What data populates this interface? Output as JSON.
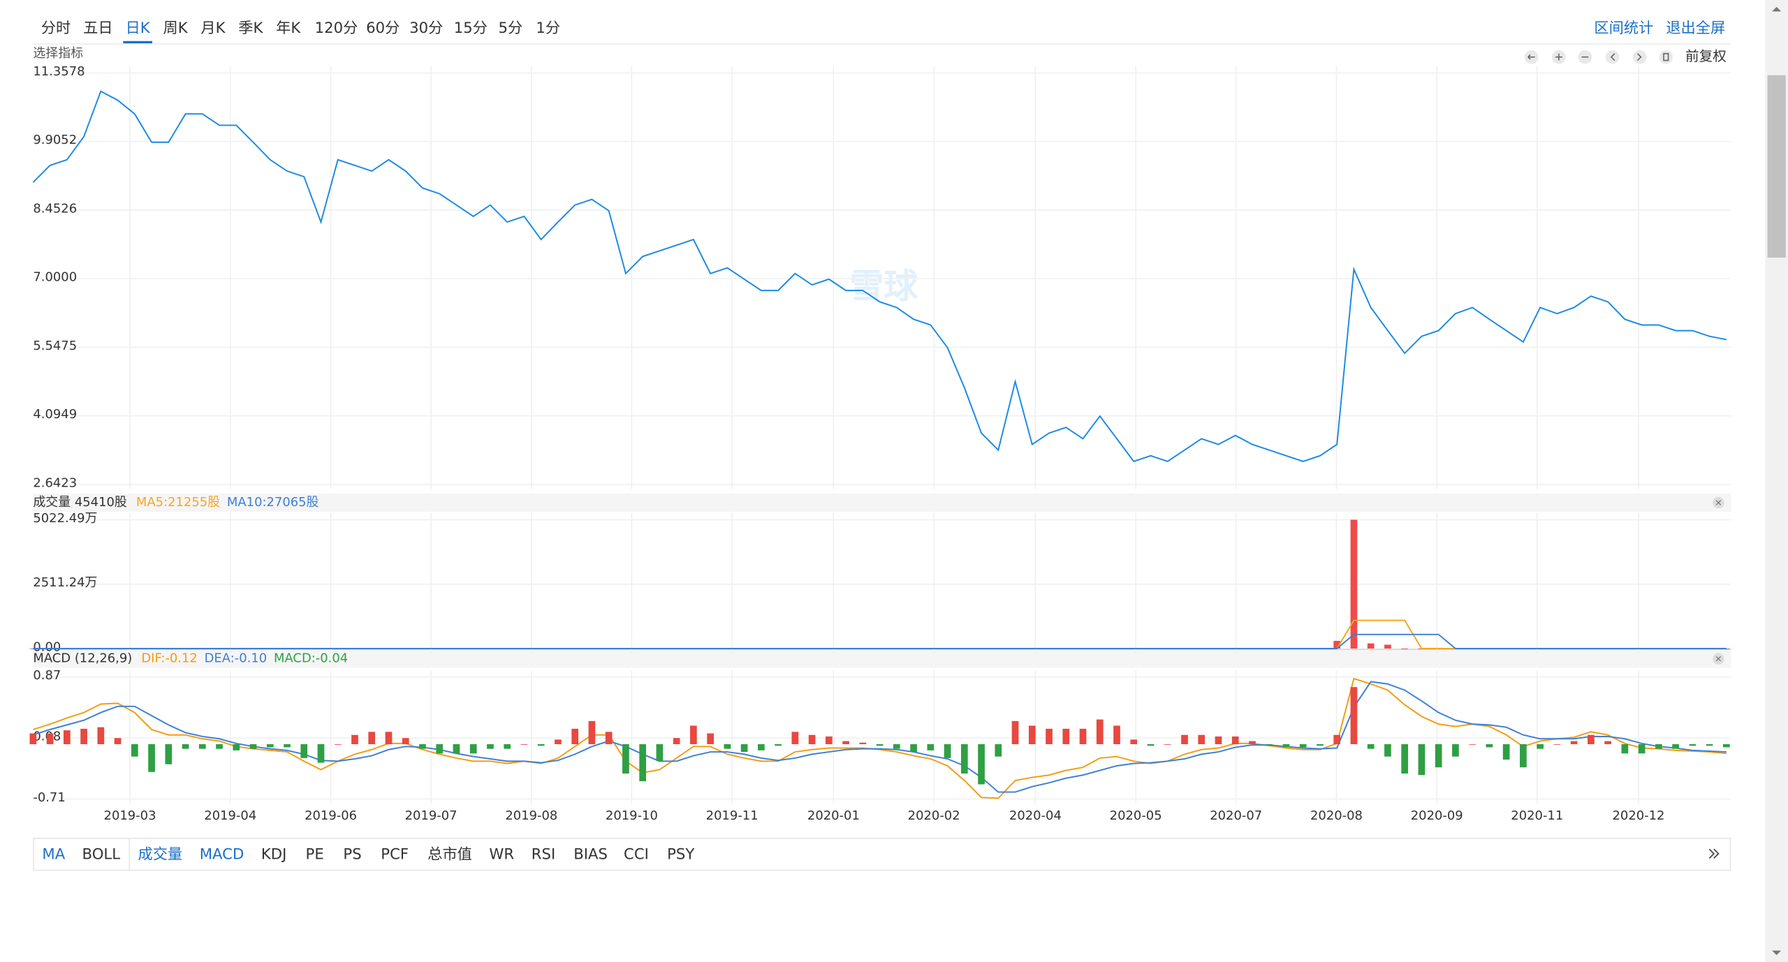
{
  "toolbar": {
    "periods": [
      "分时",
      "五日",
      "日K",
      "周K",
      "月K",
      "季K",
      "年K",
      "120分",
      "60分",
      "30分",
      "15分",
      "5分",
      "1分"
    ],
    "active_period": 2,
    "actions": [
      "区间统计",
      "退出全屏"
    ]
  },
  "indicator_select": "选择指标",
  "adjust": "前复权",
  "watermark": "雪球",
  "chart_data": [
    {
      "type": "line",
      "color": "#1a8ae5",
      "grid": true,
      "values": [
        9.04,
        9.4,
        9.52,
        10.01,
        10.97,
        10.78,
        10.49,
        9.89,
        9.89,
        10.49,
        10.49,
        10.25,
        10.25,
        9.89,
        9.52,
        9.28,
        9.16,
        8.2,
        9.52,
        9.4,
        9.28,
        9.52,
        9.28,
        8.92,
        8.8,
        8.56,
        8.32,
        8.56,
        8.2,
        8.32,
        7.83,
        8.2,
        8.56,
        8.68,
        8.44,
        7.11,
        7.47,
        7.59,
        7.71,
        7.83,
        7.11,
        7.23,
        6.99,
        6.75,
        6.75,
        7.11,
        6.87,
        6.99,
        6.75,
        6.75,
        6.51,
        6.39,
        6.14,
        6.02,
        5.54,
        4.69,
        3.73,
        3.37,
        4.82,
        3.49,
        3.73,
        3.85,
        3.61,
        4.09,
        3.61,
        3.13,
        3.25,
        3.13,
        3.37,
        3.61,
        3.49,
        3.68,
        3.49,
        3.37,
        3.25,
        3.13,
        3.25,
        3.49,
        7.2,
        6.39,
        5.9,
        5.42,
        5.78,
        5.9,
        6.26,
        6.39,
        6.14,
        5.9,
        5.66,
        6.39,
        6.26,
        6.39,
        6.63,
        6.51,
        6.14,
        6.02,
        6.02,
        5.9,
        5.9,
        5.78,
        5.71
      ],
      "xlim": [
        0,
        100
      ],
      "ylim": [
        2.6423,
        11.3578
      ],
      "yticks": [
        11.3578,
        9.9052,
        8.4526,
        {
          "value": 7,
          "label": "7.0000"
        },
        5.5475,
        4.0949,
        2.6423
      ]
    },
    {
      "type": "bar",
      "title": "成交量 45410股",
      "color": "#f04a4a",
      "grid": true,
      "values": [
        0,
        0,
        0,
        0,
        0,
        0,
        0,
        0,
        0,
        0,
        0,
        0,
        0,
        0,
        0,
        0,
        0,
        0,
        0,
        0,
        0,
        0,
        0,
        0,
        0,
        0,
        0,
        0,
        0,
        0,
        0,
        0,
        0,
        0,
        0,
        0,
        0,
        0,
        0,
        0,
        0,
        0,
        0,
        0,
        0,
        0,
        0,
        0,
        0,
        0,
        0,
        0,
        0,
        0,
        0,
        0,
        0,
        0,
        0,
        0,
        0,
        0,
        0,
        0,
        0,
        0,
        0,
        0,
        0,
        0,
        0,
        0,
        0,
        0,
        0,
        0,
        0,
        300,
        5022.49,
        200,
        150,
        0,
        0,
        0,
        0,
        0,
        0,
        0,
        0,
        0,
        0,
        0,
        0,
        0,
        0,
        0,
        0,
        0,
        0,
        0,
        0
      ],
      "series": [
        {
          "name": "MA5:21255股",
          "kind": "line",
          "color": "#f5a623",
          "values": [
            0,
            0,
            0,
            0,
            0,
            0,
            0,
            0,
            0,
            0,
            0,
            0,
            0,
            0,
            0,
            0,
            0,
            0,
            0,
            0,
            0,
            0,
            0,
            0,
            0,
            0,
            0,
            0,
            0,
            0,
            0,
            0,
            0,
            0,
            0,
            0,
            0,
            0,
            0,
            0,
            0,
            0,
            0,
            0,
            0,
            0,
            0,
            0,
            0,
            0,
            0,
            0,
            0,
            0,
            0,
            0,
            0,
            0,
            0,
            0,
            0,
            0,
            0,
            0,
            0,
            0,
            0,
            0,
            0,
            0,
            0,
            0,
            0,
            0,
            0,
            0,
            0,
            0,
            1100,
            1100,
            1100,
            1100,
            0,
            0,
            0,
            0,
            0,
            0,
            0,
            0,
            0,
            0,
            0,
            0,
            0,
            0,
            0,
            0,
            0
          ]
        },
        {
          "name": "MA10:27065股",
          "kind": "line",
          "color": "#3d7fd6",
          "values": [
            0,
            0,
            0,
            0,
            0,
            0,
            0,
            0,
            0,
            0,
            0,
            0,
            0,
            0,
            0,
            0,
            0,
            0,
            0,
            0,
            0,
            0,
            0,
            0,
            0,
            0,
            0,
            0,
            0,
            0,
            0,
            0,
            0,
            0,
            0,
            0,
            0,
            0,
            0,
            0,
            0,
            0,
            0,
            0,
            0,
            0,
            0,
            0,
            0,
            0,
            0,
            0,
            0,
            0,
            0,
            0,
            0,
            0,
            0,
            0,
            0,
            0,
            0,
            0,
            0,
            0,
            0,
            0,
            0,
            0,
            0,
            0,
            0,
            0,
            0,
            0,
            0,
            0,
            550,
            550,
            550,
            550,
            550,
            550,
            0,
            0,
            0,
            0,
            0,
            0,
            0,
            0,
            0,
            0,
            0,
            0,
            0,
            0,
            0,
            0,
            0
          ]
        }
      ],
      "xlim": [
        0,
        100
      ],
      "ylim": [
        0,
        5022.49
      ],
      "yticks": [
        {
          "value": 5022.49,
          "label": "5022.49万"
        },
        {
          "value": 2511.24,
          "label": "2511.24万"
        },
        {
          "value": 0,
          "label": "0.00"
        }
      ]
    },
    {
      "type": "bar",
      "title": "MACD (12,26,9)",
      "grid": true,
      "series": [
        {
          "name": "DIF:-0.12",
          "kind": "line",
          "color": "#f39c12",
          "values": [
            0.19,
            0.26,
            0.34,
            0.41,
            0.52,
            0.53,
            0.41,
            0.19,
            0.12,
            0.12,
            0.07,
            0.04,
            -0.03,
            -0.06,
            -0.08,
            -0.1,
            -0.22,
            -0.33,
            -0.22,
            -0.13,
            -0.07,
            0.01,
            0.01,
            -0.07,
            -0.13,
            -0.18,
            -0.22,
            -0.22,
            -0.25,
            -0.22,
            -0.25,
            -0.18,
            -0.03,
            0.12,
            0.12,
            -0.22,
            -0.37,
            -0.33,
            -0.18,
            -0.03,
            -0.03,
            -0.13,
            -0.18,
            -0.22,
            -0.22,
            -0.1,
            -0.07,
            -0.05,
            -0.05,
            -0.05,
            -0.07,
            -0.1,
            -0.15,
            -0.19,
            -0.28,
            -0.47,
            -0.69,
            -0.7,
            -0.47,
            -0.43,
            -0.4,
            -0.34,
            -0.3,
            -0.18,
            -0.16,
            -0.22,
            -0.25,
            -0.22,
            -0.13,
            -0.07,
            -0.05,
            0.01,
            0.01,
            -0.02,
            -0.05,
            -0.07,
            -0.07,
            0.01,
            0.85,
            0.78,
            0.7,
            0.51,
            0.36,
            0.26,
            0.23,
            0.26,
            0.23,
            0.12,
            -0.03,
            0.04,
            0.07,
            0.09,
            0.16,
            0.12,
            0.01,
            -0.05,
            -0.06,
            -0.08,
            -0.09,
            -0.1,
            -0.12
          ]
        },
        {
          "name": "DEA:-0.10",
          "kind": "line",
          "color": "#3d7fd6",
          "values": [
            0.12,
            0.19,
            0.25,
            0.31,
            0.41,
            0.49,
            0.49,
            0.37,
            0.25,
            0.15,
            0.1,
            0.07,
            0.01,
            -0.03,
            -0.06,
            -0.08,
            -0.13,
            -0.21,
            -0.22,
            -0.19,
            -0.15,
            -0.07,
            -0.03,
            -0.04,
            -0.07,
            -0.12,
            -0.16,
            -0.19,
            -0.22,
            -0.22,
            -0.24,
            -0.21,
            -0.13,
            -0.03,
            0.04,
            -0.03,
            -0.13,
            -0.22,
            -0.22,
            -0.15,
            -0.1,
            -0.1,
            -0.13,
            -0.18,
            -0.21,
            -0.18,
            -0.13,
            -0.1,
            -0.07,
            -0.06,
            -0.06,
            -0.07,
            -0.1,
            -0.15,
            -0.19,
            -0.28,
            -0.43,
            -0.62,
            -0.62,
            -0.55,
            -0.5,
            -0.44,
            -0.4,
            -0.34,
            -0.28,
            -0.25,
            -0.24,
            -0.22,
            -0.19,
            -0.13,
            -0.1,
            -0.04,
            -0.01,
            -0.01,
            -0.03,
            -0.05,
            -0.06,
            -0.05,
            0.48,
            0.81,
            0.78,
            0.7,
            0.56,
            0.41,
            0.31,
            0.26,
            0.25,
            0.22,
            0.12,
            0.07,
            0.07,
            0.07,
            0.1,
            0.1,
            0.07,
            0.01,
            -0.03,
            -0.05,
            -0.08,
            -0.09,
            -0.1
          ]
        },
        {
          "name": "MACD:-0.04",
          "kind": "bar",
          "color": "#e8483f",
          "negative_color": "#2ea043",
          "values": [
            0.14,
            0.14,
            0.18,
            0.2,
            0.22,
            0.08,
            -0.16,
            -0.36,
            -0.26,
            -0.06,
            -0.06,
            -0.06,
            -0.08,
            -0.06,
            -0.04,
            -0.04,
            -0.18,
            -0.24,
            0,
            0.12,
            0.16,
            0.16,
            0.08,
            -0.06,
            -0.12,
            -0.12,
            -0.12,
            -0.06,
            -0.06,
            0,
            -0.02,
            0.06,
            0.2,
            0.3,
            0.16,
            -0.38,
            -0.48,
            -0.22,
            0.08,
            0.24,
            0.14,
            -0.06,
            -0.1,
            -0.08,
            -0.02,
            0.16,
            0.12,
            0.1,
            0.04,
            0.02,
            -0.02,
            -0.06,
            -0.1,
            -0.08,
            -0.18,
            -0.38,
            -0.52,
            -0.16,
            0.3,
            0.24,
            0.2,
            0.2,
            0.2,
            0.32,
            0.24,
            0.06,
            -0.02,
            0,
            0.12,
            0.12,
            0.1,
            0.1,
            0.04,
            -0.02,
            -0.04,
            -0.04,
            -0.02,
            0.12,
            0.74,
            -0.06,
            -0.16,
            -0.38,
            -0.4,
            -0.3,
            -0.16,
            0,
            -0.04,
            -0.2,
            -0.3,
            -0.06,
            0,
            0.04,
            0.12,
            0.04,
            -0.12,
            -0.12,
            -0.06,
            -0.06,
            -0.02,
            -0.02,
            -0.04
          ]
        }
      ],
      "xlim": [
        0,
        100
      ],
      "ylim": [
        -0.71,
        0.87
      ],
      "yticks": [
        0.87,
        0.08,
        -0.71
      ],
      "xticks": [
        {
          "value": 5.72,
          "label": "2019-03"
        },
        {
          "value": 11.65,
          "label": "2019-04"
        },
        {
          "value": 17.58,
          "label": "2019-06"
        },
        {
          "value": 23.5,
          "label": "2019-07"
        },
        {
          "value": 29.43,
          "label": "2019-08"
        },
        {
          "value": 35.35,
          "label": "2019-10"
        },
        {
          "value": 41.28,
          "label": "2019-11"
        },
        {
          "value": 47.27,
          "label": "2020-01"
        },
        {
          "value": 53.2,
          "label": "2020-02"
        },
        {
          "value": 59.19,
          "label": "2020-04"
        },
        {
          "value": 65.12,
          "label": "2020-05"
        },
        {
          "value": 71.04,
          "label": "2020-07"
        },
        {
          "value": 76.97,
          "label": "2020-08"
        },
        {
          "value": 82.9,
          "label": "2020-09"
        },
        {
          "value": 88.82,
          "label": "2020-11"
        },
        {
          "value": 94.81,
          "label": "2020-12"
        }
      ]
    }
  ],
  "indicator_tabs": {
    "items": [
      "MA",
      "BOLL",
      "成交量",
      "MACD",
      "KDJ",
      "PE",
      "PS",
      "PCF",
      "总市值",
      "WR",
      "RSI",
      "BIAS",
      "CCI",
      "PSY"
    ],
    "active": [
      0,
      2,
      3
    ]
  }
}
